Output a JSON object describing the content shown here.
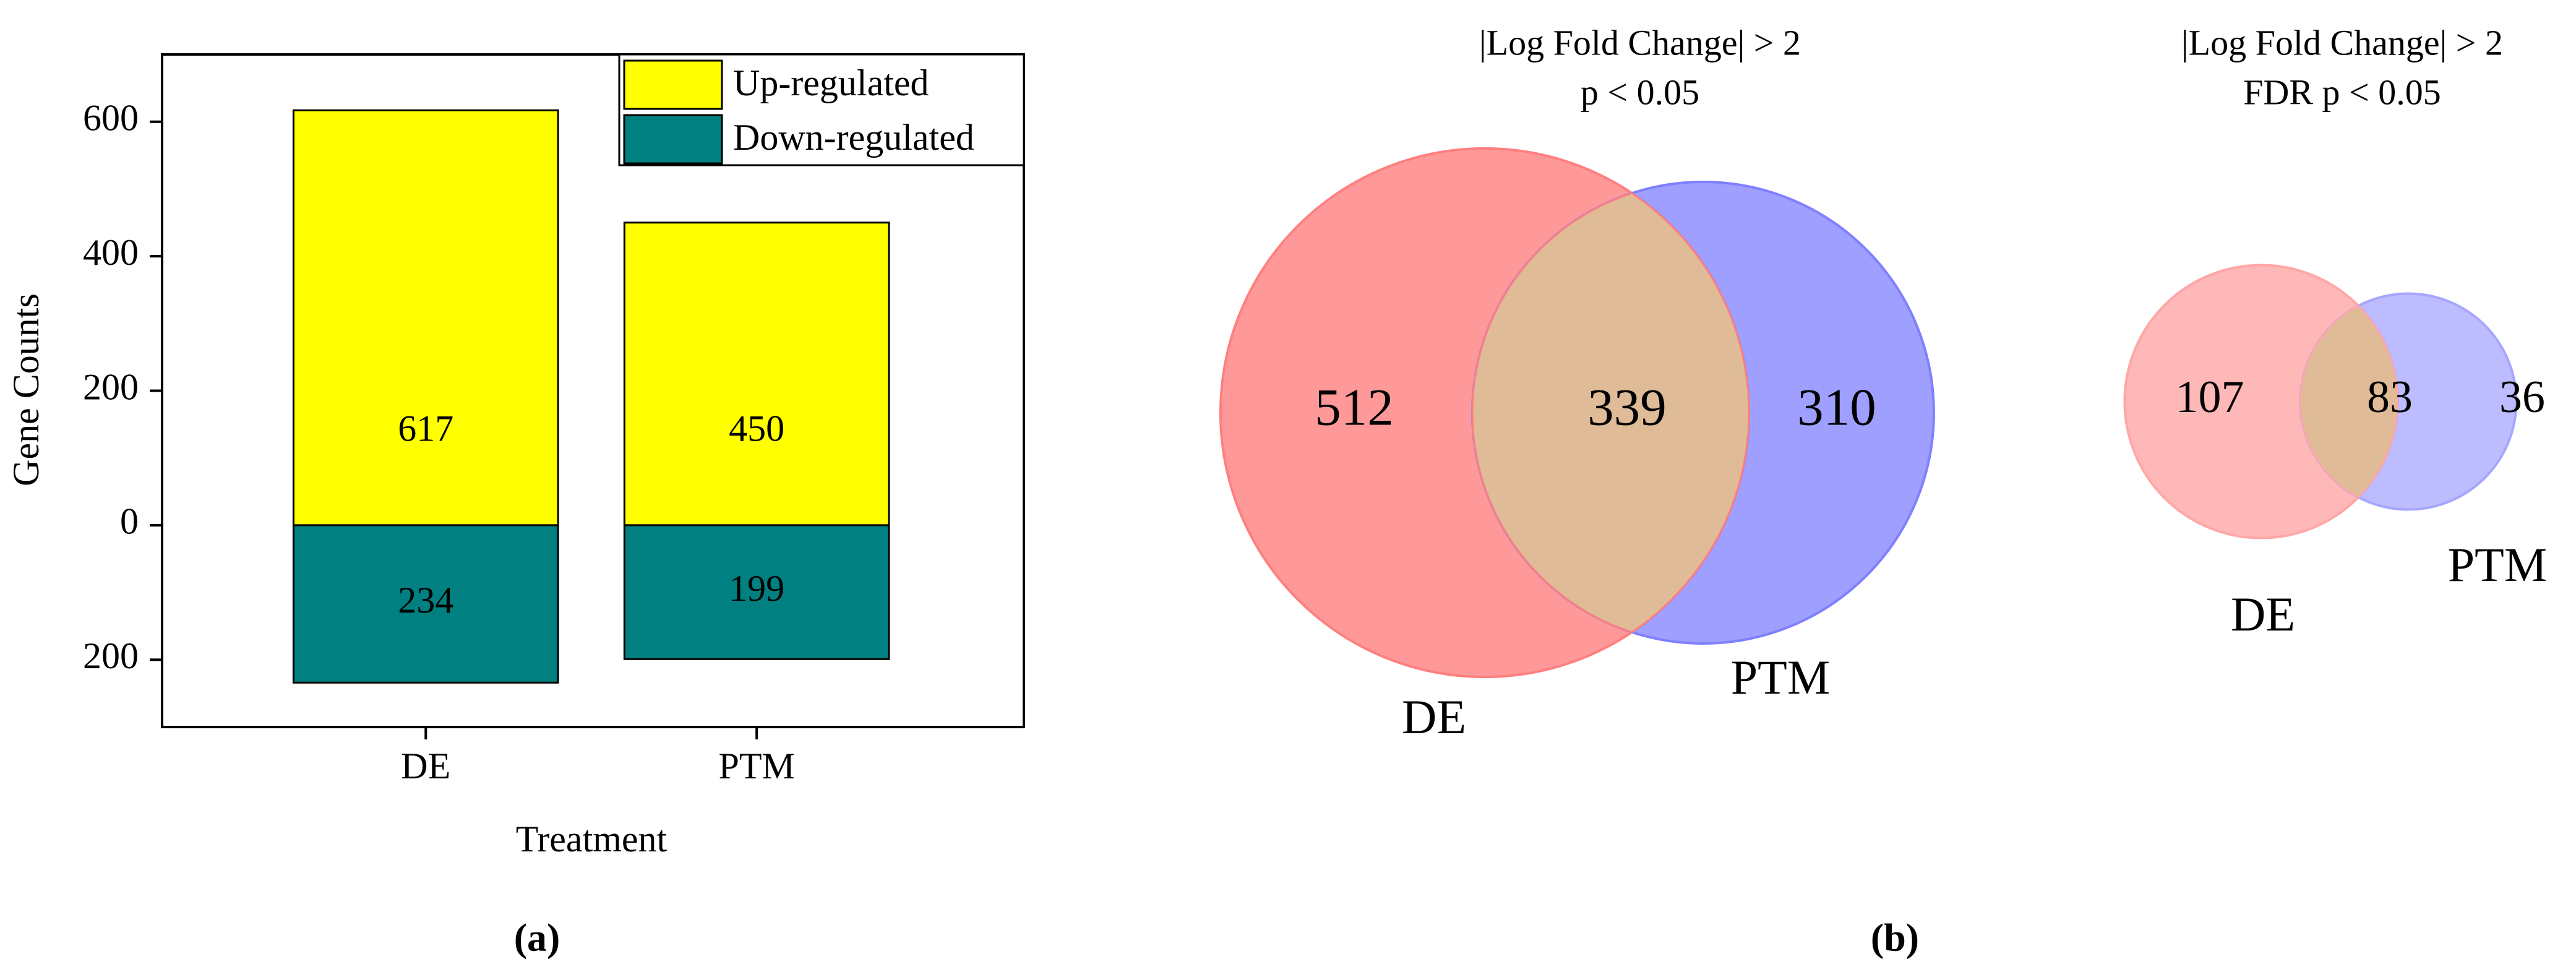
{
  "chart_data": [
    {
      "type": "bar",
      "stacked": true,
      "y_label": "Gene Counts",
      "x_label": "Treatment",
      "categories": [
        "DE",
        "PTM"
      ],
      "series": [
        {
          "name": "Up-regulated",
          "color": "#ffff00",
          "values": [
            617,
            450
          ]
        },
        {
          "name": "Down-regulated",
          "color": "#008080",
          "values": [
            -234,
            -199
          ],
          "value_labels": [
            "234",
            "199"
          ]
        }
      ],
      "ylim": [
        -300,
        700
      ],
      "yticks": [
        {
          "value": -200,
          "label": "200"
        },
        0,
        200,
        400,
        600
      ],
      "legend": "upper right"
    },
    {
      "type": "venn",
      "title": "|Log Fold Change| > 2",
      "subtitle": "p < 0.05",
      "sets": [
        {
          "name": "DE",
          "color": "#ff7f7f"
        },
        {
          "name": "PTM",
          "color": "#7f7fff"
        }
      ],
      "values": [
        512,
        339,
        310
      ],
      "overlap_color": "#dfbb98"
    },
    {
      "type": "venn",
      "title": "|Log Fold Change| > 2",
      "subtitle": "FDR p < 0.05",
      "sets": [
        {
          "name": "DE",
          "color": "#ffa6a6"
        },
        {
          "name": "PTM",
          "color": "#a6a6ff"
        }
      ],
      "values": [
        107,
        83,
        36
      ],
      "overlap_color": "#dfbb98"
    }
  ],
  "captions": [
    "(a)",
    "(b)"
  ]
}
